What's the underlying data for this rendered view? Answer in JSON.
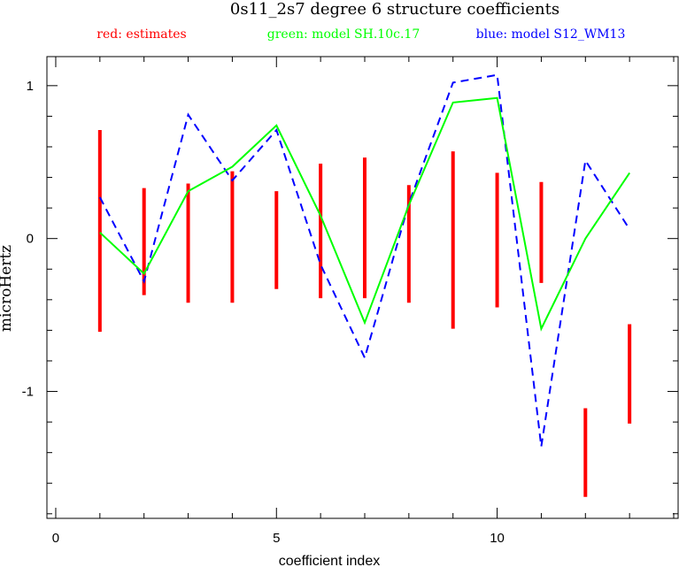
{
  "chart_data": {
    "type": "line",
    "title": "0s11_2s7 degree 6 structure coefficients",
    "xlabel": "coefficient index",
    "ylabel": "microHertz",
    "xlim": [
      -0.2,
      14.1
    ],
    "ylim": [
      -1.83,
      1.19
    ],
    "x_ticks": [
      0,
      5,
      10
    ],
    "x_tick_labels": [
      "0",
      "5",
      "10"
    ],
    "y_ticks": [
      -1,
      0,
      1
    ],
    "y_tick_labels": [
      "-1",
      "0",
      "1"
    ],
    "grid": false,
    "legend": [
      {
        "label": "red: estimates",
        "color": "#ff0000"
      },
      {
        "label": "green: model SH.10c.17",
        "color": "#00ff00"
      },
      {
        "label": "blue: model S12_WM13",
        "color": "#0000ff"
      }
    ],
    "estimates": {
      "name": "estimates",
      "color": "#ff0000",
      "x": [
        1,
        2,
        3,
        4,
        5,
        6,
        7,
        8,
        9,
        10,
        11,
        12,
        13
      ],
      "low": [
        -0.61,
        -0.37,
        -0.42,
        -0.42,
        -0.33,
        -0.39,
        -0.39,
        -0.42,
        -0.59,
        -0.45,
        -0.29,
        -1.69,
        -1.21
      ],
      "high": [
        0.71,
        0.33,
        0.36,
        0.44,
        0.31,
        0.49,
        0.53,
        0.35,
        0.57,
        0.43,
        0.37,
        -1.11,
        -0.56
      ]
    },
    "series": [
      {
        "name": "SH.10c.17",
        "color": "#00ff00",
        "style": "solid",
        "x": [
          1,
          2,
          3,
          4,
          5,
          6,
          7,
          8,
          9,
          10,
          11,
          12,
          13
        ],
        "values": [
          0.04,
          -0.23,
          0.31,
          0.47,
          0.74,
          0.15,
          -0.55,
          0.22,
          0.89,
          0.92,
          -0.59,
          0.0,
          0.43
        ]
      },
      {
        "name": "S12_WM13",
        "color": "#0000ff",
        "style": "dashed",
        "x": [
          1,
          2,
          3,
          4,
          5,
          6,
          7,
          8,
          9,
          10,
          11,
          12,
          13
        ],
        "values": [
          0.27,
          -0.28,
          0.81,
          0.38,
          0.71,
          -0.17,
          -0.78,
          0.23,
          1.02,
          1.07,
          -1.36,
          0.51,
          0.06
        ]
      }
    ]
  }
}
